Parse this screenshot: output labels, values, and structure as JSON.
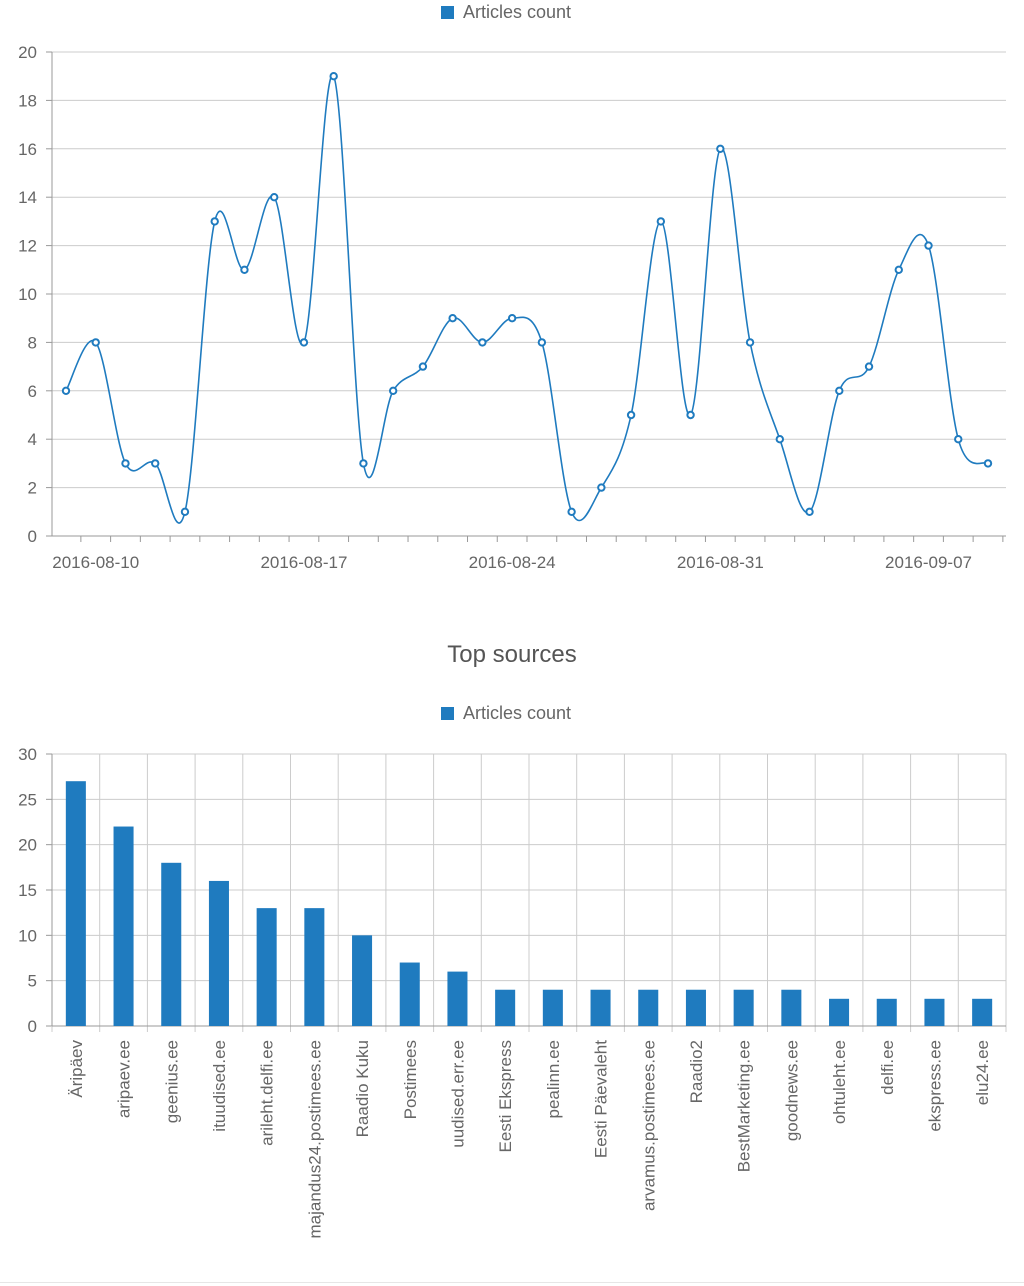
{
  "chart_data": [
    {
      "type": "line",
      "title": "",
      "legend": {
        "labels": [
          "Articles count"
        ],
        "placement": "top-center"
      },
      "xlabel": "",
      "ylabel": "",
      "x_tick_labels": [
        "2016-08-10",
        "2016-08-17",
        "2016-08-24",
        "2016-08-31",
        "2016-09-07"
      ],
      "y_tick_labels": [
        "0",
        "2",
        "4",
        "6",
        "8",
        "10",
        "12",
        "14",
        "16",
        "18",
        "20"
      ],
      "ylim": [
        0,
        20
      ],
      "grid": true,
      "series": [
        {
          "name": "Articles count",
          "color": "#1f7bbf",
          "x": [
            "2016-08-09",
            "2016-08-10",
            "2016-08-11",
            "2016-08-12",
            "2016-08-13",
            "2016-08-14",
            "2016-08-15",
            "2016-08-16",
            "2016-08-17",
            "2016-08-18",
            "2016-08-19",
            "2016-08-20",
            "2016-08-21",
            "2016-08-22",
            "2016-08-23",
            "2016-08-24",
            "2016-08-25",
            "2016-08-26",
            "2016-08-27",
            "2016-08-28",
            "2016-08-29",
            "2016-08-30",
            "2016-08-31",
            "2016-09-01",
            "2016-09-02",
            "2016-09-03",
            "2016-09-04",
            "2016-09-05",
            "2016-09-06",
            "2016-09-07",
            "2016-09-08",
            "2016-09-09"
          ],
          "values": [
            6,
            8,
            3,
            3,
            1,
            13,
            11,
            14,
            8,
            19,
            3,
            6,
            7,
            9,
            8,
            9,
            8,
            1,
            2,
            5,
            13,
            5,
            16,
            8,
            4,
            1,
            6,
            7,
            11,
            12,
            4,
            3
          ]
        }
      ]
    },
    {
      "type": "bar",
      "title": "Top sources",
      "legend": {
        "labels": [
          "Articles count"
        ],
        "placement": "top-center"
      },
      "xlabel": "",
      "ylabel": "",
      "ylim": [
        0,
        30
      ],
      "y_tick_labels": [
        "0",
        "5",
        "10",
        "15",
        "20",
        "25",
        "30"
      ],
      "grid": true,
      "categories": [
        "Äripäev",
        "aripaev.ee",
        "geenius.ee",
        "ituudised.ee",
        "arileht.delfi.ee",
        "majandus24.postimees.ee",
        "Raadio Kuku",
        "Postimees",
        "uudised.err.ee",
        "Eesti Ekspress",
        "pealinn.ee",
        "Eesti Päevaleht",
        "arvamus.postimees.ee",
        "Raadio2",
        "BestMarketing.ee",
        "goodnews.ee",
        "ohtuleht.ee",
        "delfi.ee",
        "ekspress.ee",
        "elu24.ee"
      ],
      "series": [
        {
          "name": "Articles count",
          "color": "#1f7bbf",
          "values": [
            27,
            22,
            18,
            16,
            13,
            13,
            10,
            7,
            6,
            4,
            4,
            4,
            4,
            4,
            4,
            4,
            3,
            3,
            3,
            3
          ]
        }
      ]
    }
  ]
}
